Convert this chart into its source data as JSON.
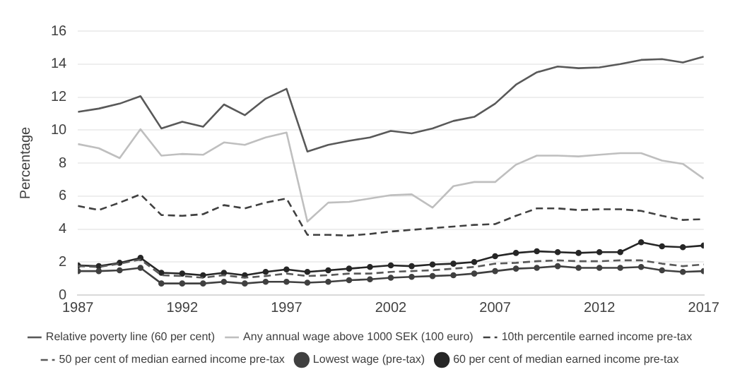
{
  "chart_data": {
    "type": "line",
    "ylabel": "Percentage",
    "x": [
      1987,
      1988,
      1989,
      1990,
      1991,
      1992,
      1993,
      1994,
      1995,
      1996,
      1997,
      1998,
      1999,
      2000,
      2001,
      2002,
      2003,
      2004,
      2005,
      2006,
      2007,
      2008,
      2009,
      2010,
      2011,
      2012,
      2013,
      2014,
      2015,
      2016,
      2017
    ],
    "xlim": [
      1987,
      2017
    ],
    "xticks": [
      1987,
      1992,
      1997,
      2002,
      2007,
      2012,
      2017
    ],
    "ylim": [
      0,
      16
    ],
    "yticks": [
      0,
      2,
      4,
      6,
      8,
      10,
      12,
      14,
      16
    ],
    "grid": "y",
    "legend": "bottom",
    "series": [
      {
        "name": "Relative poverty line (60 per cent)",
        "color": "#595959",
        "line_style": "solid",
        "marker": "none",
        "values": [
          11.1,
          11.3,
          11.6,
          12.05,
          10.1,
          10.5,
          10.2,
          11.55,
          10.9,
          11.9,
          12.5,
          8.7,
          9.1,
          9.35,
          9.55,
          9.95,
          9.8,
          10.1,
          10.55,
          10.8,
          11.6,
          12.75,
          13.5,
          13.85,
          13.75,
          13.8,
          14.0,
          14.25,
          14.3,
          14.1,
          14.45
        ]
      },
      {
        "name": "Any annual wage above 1000 SEK (100 euro)",
        "color": "#bfbfbf",
        "line_style": "solid",
        "marker": "none",
        "values": [
          9.15,
          8.9,
          8.3,
          10.05,
          8.45,
          8.55,
          8.5,
          9.25,
          9.1,
          9.55,
          9.85,
          4.45,
          5.6,
          5.65,
          5.85,
          6.05,
          6.1,
          5.3,
          6.6,
          6.85,
          6.85,
          7.9,
          8.45,
          8.45,
          8.4,
          8.5,
          8.6,
          8.6,
          8.15,
          7.95,
          7.05
        ]
      },
      {
        "name": "10th percentile earned income pre-tax",
        "color": "#404040",
        "line_style": "dashed",
        "marker": "none",
        "values": [
          5.4,
          5.15,
          5.6,
          6.1,
          4.85,
          4.8,
          4.9,
          5.45,
          5.25,
          5.6,
          5.85,
          3.65,
          3.65,
          3.6,
          3.7,
          3.85,
          3.95,
          4.05,
          4.15,
          4.25,
          4.3,
          4.8,
          5.25,
          5.25,
          5.15,
          5.2,
          5.2,
          5.1,
          4.8,
          4.55,
          4.6
        ]
      },
      {
        "name": "50 per cent of median earned income pre-tax",
        "color": "#595959",
        "line_style": "dashed",
        "marker": "none",
        "values": [
          1.75,
          1.7,
          1.9,
          2.15,
          1.2,
          1.15,
          1.05,
          1.2,
          1.05,
          1.15,
          1.3,
          1.15,
          1.2,
          1.3,
          1.3,
          1.4,
          1.45,
          1.5,
          1.6,
          1.7,
          1.9,
          1.95,
          2.05,
          2.1,
          2.05,
          2.05,
          2.1,
          2.1,
          1.9,
          1.75,
          1.85
        ]
      },
      {
        "name": "Lowest wage (pre-tax)",
        "color": "#404040",
        "line_style": "solid",
        "marker": "circle",
        "values": [
          1.45,
          1.45,
          1.5,
          1.65,
          0.7,
          0.7,
          0.7,
          0.8,
          0.7,
          0.8,
          0.8,
          0.75,
          0.8,
          0.9,
          0.95,
          1.05,
          1.1,
          1.15,
          1.2,
          1.3,
          1.45,
          1.6,
          1.65,
          1.75,
          1.65,
          1.65,
          1.65,
          1.7,
          1.5,
          1.4,
          1.45
        ]
      },
      {
        "name": "60 per cent of median earned income pre-tax",
        "color": "#262626",
        "line_style": "solid",
        "marker": "circle",
        "values": [
          1.8,
          1.75,
          1.95,
          2.25,
          1.35,
          1.3,
          1.2,
          1.35,
          1.2,
          1.4,
          1.55,
          1.4,
          1.5,
          1.6,
          1.7,
          1.8,
          1.75,
          1.85,
          1.9,
          2.0,
          2.35,
          2.55,
          2.65,
          2.6,
          2.55,
          2.6,
          2.6,
          3.2,
          2.95,
          2.9,
          3.0
        ]
      }
    ]
  }
}
